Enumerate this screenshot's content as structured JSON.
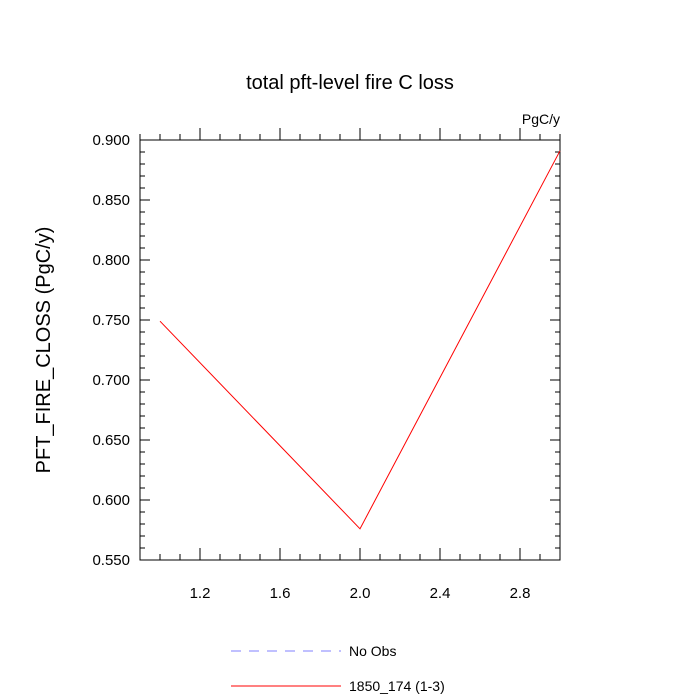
{
  "chart_data": {
    "type": "line",
    "title": "total pft-level fire C loss",
    "units_label": "PgC/y",
    "ylabel": "PFT_FIRE_CLOSS  (PgC/y)",
    "xlabel": "",
    "xlim": [
      0.9,
      3.0
    ],
    "ylim": [
      0.55,
      0.9
    ],
    "x_ticks": [
      1.2,
      1.6,
      2.0,
      2.4,
      2.8
    ],
    "x_tick_labels": [
      "1.2",
      "1.6",
      "2.0",
      "2.4",
      "2.8"
    ],
    "y_ticks": [
      0.55,
      0.6,
      0.65,
      0.7,
      0.75,
      0.8,
      0.85,
      0.9
    ],
    "y_tick_labels": [
      "0.550",
      "0.600",
      "0.650",
      "0.700",
      "0.750",
      "0.800",
      "0.850",
      "0.900"
    ],
    "grid": false,
    "legend_position": "bottom",
    "series": [
      {
        "name": "No Obs",
        "x": [],
        "y": [],
        "color": "#8080ff",
        "dash": "dashed"
      },
      {
        "name": "1850_174 (1-3)",
        "x": [
          1.0,
          2.0,
          3.0
        ],
        "y": [
          0.749,
          0.576,
          0.891
        ],
        "color": "#ff0000",
        "dash": "solid"
      }
    ]
  }
}
